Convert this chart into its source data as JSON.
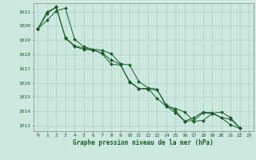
{
  "bg_color": "#cce8e0",
  "grid_color": "#b0d0c8",
  "line_color": "#1a5c25",
  "marker_color": "#1a5c25",
  "xlabel": "Graphe pression niveau de la mer (hPa)",
  "xlabel_color": "#1a5c25",
  "ylabel_color": "#1a5c25",
  "xlim": [
    -0.5,
    23.5
  ],
  "ylim": [
    1012.6,
    1021.6
  ],
  "yticks": [
    1013,
    1014,
    1015,
    1016,
    1017,
    1018,
    1019,
    1020,
    1021
  ],
  "xticks": [
    0,
    1,
    2,
    3,
    4,
    5,
    6,
    7,
    8,
    9,
    10,
    11,
    12,
    13,
    14,
    15,
    16,
    17,
    18,
    19,
    20,
    21,
    22,
    23
  ],
  "series": [
    [
      1019.8,
      1020.4,
      1021.05,
      1021.25,
      1019.05,
      1018.55,
      1018.35,
      1018.3,
      1018.05,
      1017.35,
      1017.25,
      1016.1,
      1015.65,
      1015.55,
      1014.35,
      1014.2,
      1013.95,
      1013.3,
      1013.35,
      1013.85,
      1013.95,
      1013.55,
      1012.85
    ],
    [
      1019.8,
      1020.85,
      1021.35,
      1019.15,
      1018.55,
      1018.35,
      1018.3,
      1018.1,
      1017.6,
      1017.3,
      1016.05,
      1015.6,
      1015.55,
      1015.5,
      1014.45,
      1014.05,
      1013.3,
      1013.55,
      1013.95,
      1013.9,
      1013.55,
      1013.05,
      1012.8
    ],
    [
      1019.8,
      1021.0,
      1021.3,
      1019.2,
      1018.6,
      1018.45,
      1018.35,
      1018.05,
      1017.3,
      1017.25,
      1016.1,
      1015.6,
      1015.6,
      1014.9,
      1014.35,
      1013.9,
      1013.3,
      1013.35,
      1013.9,
      1013.85,
      1013.55,
      1013.45,
      1012.85
    ]
  ]
}
